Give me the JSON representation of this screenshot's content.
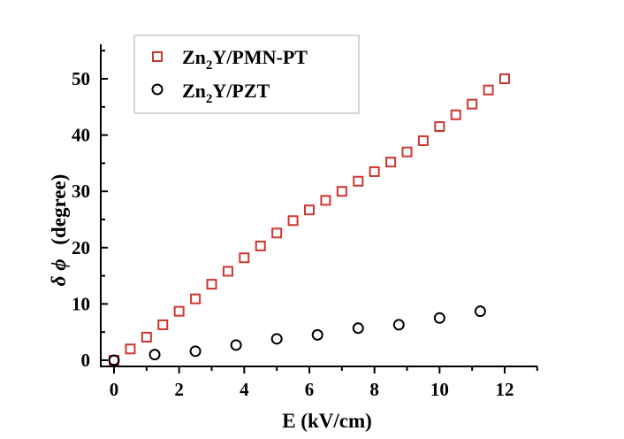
{
  "chart_data": {
    "type": "scatter",
    "title": "",
    "xlabel": "E (kV/cm)",
    "ylabel_symbol": "δ ϕ",
    "ylabel_unit": "(degree)",
    "xlim": [
      0,
      13
    ],
    "ylim": [
      -1,
      55
    ],
    "xticks": [
      0,
      2,
      4,
      6,
      8,
      10,
      12
    ],
    "yticks": [
      0,
      10,
      20,
      30,
      40,
      50
    ],
    "legend_position": "top-left",
    "series": [
      {
        "name": "Zn2Y/PMN-PT",
        "legend_parts": [
          "Zn",
          "2",
          "Y/PMN-PT"
        ],
        "marker": "square",
        "color": "#d0352f",
        "x": [
          0,
          0.5,
          1,
          1.5,
          2,
          2.5,
          3,
          3.5,
          4,
          4.5,
          5,
          5.5,
          6,
          6.5,
          7,
          7.5,
          8,
          8.5,
          9,
          9.5,
          10,
          10.5,
          11,
          11.5,
          12
        ],
        "y": [
          0,
          2,
          4.1,
          6.3,
          8.7,
          10.9,
          13.5,
          15.8,
          18.2,
          20.3,
          22.6,
          24.8,
          26.7,
          28.4,
          30.0,
          31.8,
          33.5,
          35.2,
          37.0,
          39.0,
          41.5,
          43.6,
          45.5,
          48.0,
          50.0
        ]
      },
      {
        "name": "Zn2Y/PZT",
        "legend_parts": [
          "Zn",
          "2",
          "Y/PZT"
        ],
        "marker": "circle",
        "color": "#000000",
        "x": [
          0,
          1.25,
          2.5,
          3.75,
          5,
          6.25,
          7.5,
          8.75,
          10,
          11.25
        ],
        "y": [
          0,
          1.0,
          1.6,
          2.7,
          3.8,
          4.5,
          5.7,
          6.3,
          7.5,
          8.7
        ]
      }
    ]
  }
}
